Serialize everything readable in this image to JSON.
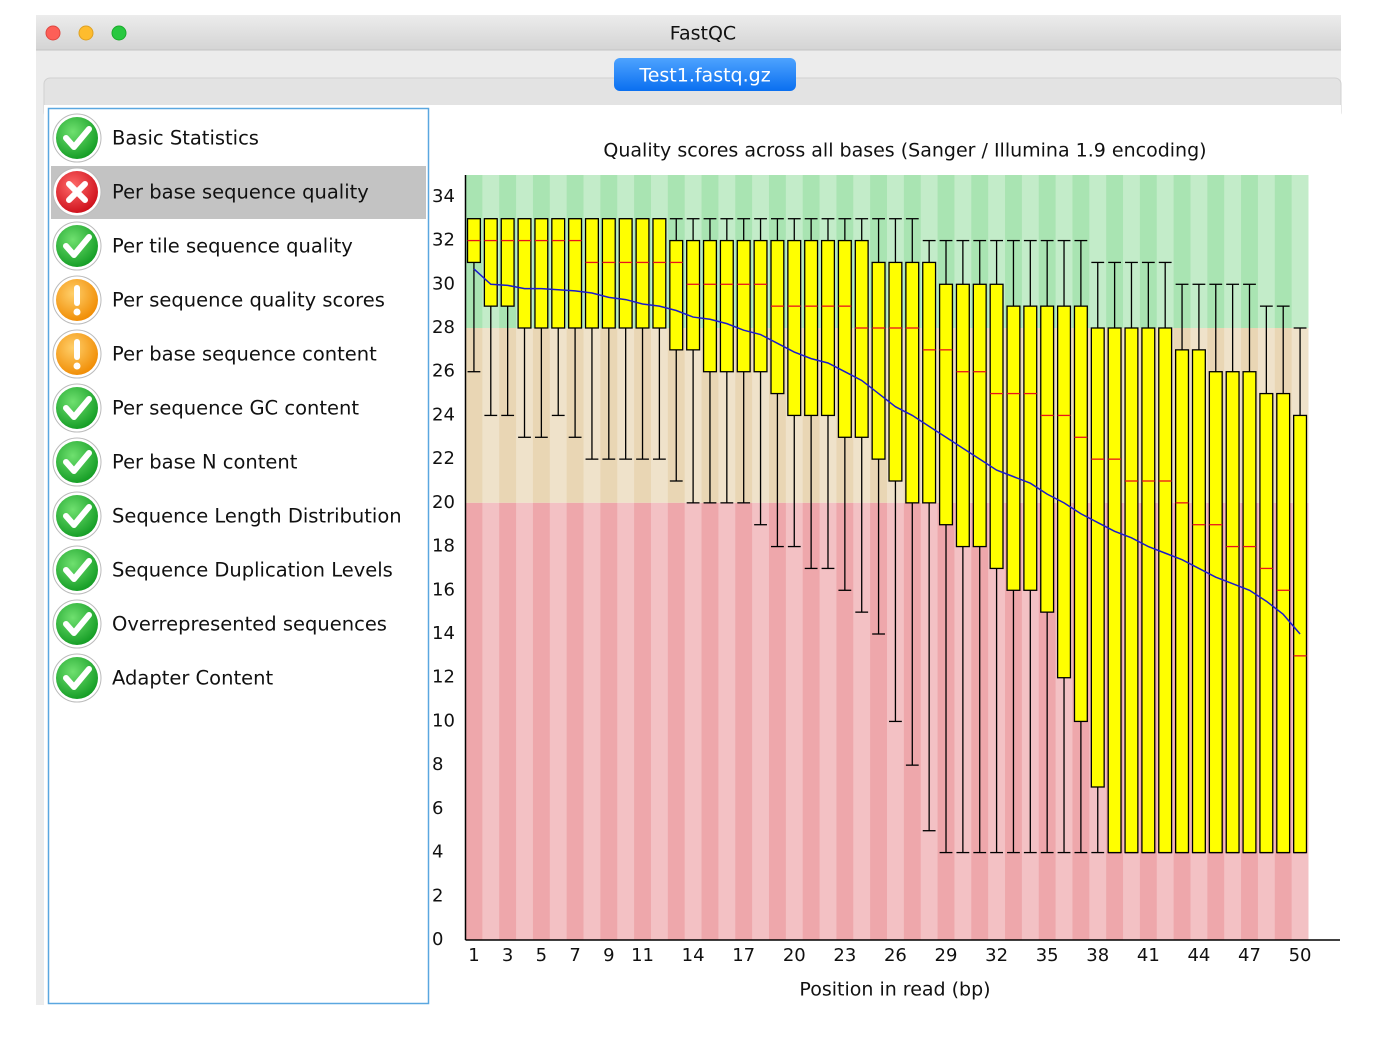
{
  "window": {
    "title": "FastQC",
    "tab": "Test1.fastq.gz"
  },
  "sidebar": {
    "selected": 1,
    "modules": [
      {
        "name": "Basic Statistics",
        "status": "pass"
      },
      {
        "name": "Per base sequence quality",
        "status": "fail"
      },
      {
        "name": "Per tile sequence quality",
        "status": "pass"
      },
      {
        "name": "Per sequence quality scores",
        "status": "warn"
      },
      {
        "name": "Per base sequence content",
        "status": "warn"
      },
      {
        "name": "Per sequence GC content",
        "status": "pass"
      },
      {
        "name": "Per base N content",
        "status": "pass"
      },
      {
        "name": "Sequence Length Distribution",
        "status": "pass"
      },
      {
        "name": "Sequence Duplication Levels",
        "status": "pass"
      },
      {
        "name": "Overrepresented sequences",
        "status": "pass"
      },
      {
        "name": "Adapter Content",
        "status": "pass"
      }
    ]
  },
  "chart_data": {
    "type": "box",
    "title": "Quality scores across all bases (Sanger / Illumina 1.9 encoding)",
    "x_label": "Position in read (bp)",
    "x": [
      1,
      2,
      3,
      4,
      5,
      6,
      7,
      8,
      9,
      10,
      11,
      12,
      13,
      14,
      15,
      16,
      17,
      18,
      19,
      20,
      21,
      22,
      23,
      24,
      25,
      26,
      27,
      28,
      29,
      30,
      31,
      32,
      33,
      34,
      35,
      36,
      37,
      38,
      39,
      40,
      41,
      42,
      43,
      44,
      45,
      46,
      47,
      48,
      49,
      50
    ],
    "whisker_high": [
      33,
      33,
      33,
      33,
      33,
      33,
      33,
      33,
      33,
      33,
      33,
      33,
      33,
      33,
      33,
      33,
      33,
      33,
      33,
      33,
      33,
      33,
      33,
      33,
      33,
      33,
      33,
      32,
      32,
      32,
      32,
      32,
      32,
      32,
      32,
      32,
      32,
      31,
      31,
      31,
      31,
      31,
      30,
      30,
      30,
      30,
      30,
      29,
      29,
      28
    ],
    "q3": [
      33,
      33,
      33,
      33,
      33,
      33,
      33,
      33,
      33,
      33,
      33,
      33,
      32,
      32,
      32,
      32,
      32,
      32,
      32,
      32,
      32,
      32,
      32,
      32,
      31,
      31,
      31,
      31,
      30,
      30,
      30,
      30,
      29,
      29,
      29,
      29,
      29,
      28,
      28,
      28,
      28,
      28,
      27,
      27,
      26,
      26,
      26,
      25,
      25,
      24
    ],
    "median": [
      32,
      32,
      32,
      32,
      32,
      32,
      32,
      31,
      31,
      31,
      31,
      31,
      31,
      30,
      30,
      30,
      30,
      30,
      29,
      29,
      29,
      29,
      29,
      28,
      28,
      28,
      28,
      27,
      27,
      26,
      26,
      25,
      25,
      25,
      24,
      24,
      23,
      22,
      22,
      21,
      21,
      21,
      20,
      19,
      19,
      18,
      18,
      17,
      16,
      13
    ],
    "q1": [
      31,
      29,
      29,
      28,
      28,
      28,
      28,
      28,
      28,
      28,
      28,
      28,
      27,
      27,
      26,
      26,
      26,
      26,
      25,
      24,
      24,
      24,
      23,
      23,
      22,
      21,
      20,
      20,
      19,
      18,
      18,
      17,
      16,
      16,
      15,
      12,
      10,
      7,
      4,
      4,
      4,
      4,
      4,
      4,
      4,
      4,
      4,
      4,
      4,
      4
    ],
    "whisker_low": [
      26,
      24,
      24,
      23,
      23,
      24,
      23,
      22,
      22,
      22,
      22,
      22,
      21,
      20,
      20,
      20,
      20,
      19,
      18,
      18,
      17,
      17,
      16,
      15,
      14,
      10,
      8,
      5,
      4,
      4,
      4,
      4,
      4,
      4,
      4,
      4,
      4,
      4,
      4,
      4,
      4,
      4,
      4,
      4,
      4,
      4,
      4,
      4,
      4,
      4
    ],
    "mean": [
      30.7,
      30.0,
      29.95,
      29.8,
      29.8,
      29.75,
      29.7,
      29.6,
      29.4,
      29.3,
      29.1,
      29.0,
      28.8,
      28.5,
      28.4,
      28.2,
      27.9,
      27.7,
      27.3,
      26.9,
      26.6,
      26.4,
      26.0,
      25.6,
      25.0,
      24.4,
      24.0,
      23.5,
      23.0,
      22.5,
      22.0,
      21.5,
      21.2,
      20.9,
      20.4,
      20.0,
      19.5,
      19.1,
      18.7,
      18.4,
      18.0,
      17.7,
      17.4,
      17.0,
      16.6,
      16.3,
      16.0,
      15.5,
      14.9,
      14.0
    ],
    "box_color": "#ffff00",
    "median_color": "#e8141c",
    "mean_color": "#1a1acc",
    "whisker_color": "#000000",
    "zones": [
      {
        "from": 28,
        "to": 35,
        "color": "#a9e4b2"
      },
      {
        "from": 20,
        "to": 28,
        "color": "#e9d6b4"
      },
      {
        "from": 0,
        "to": 20,
        "color": "#eea7ab"
      }
    ],
    "xlim": [
      0.5,
      50.5
    ],
    "xticks": [
      1,
      3,
      5,
      7,
      9,
      11,
      14,
      17,
      20,
      23,
      26,
      29,
      32,
      35,
      38,
      41,
      44,
      47,
      50
    ],
    "ylim": [
      0,
      35
    ],
    "yticks": [
      0,
      2,
      4,
      6,
      8,
      10,
      12,
      14,
      16,
      18,
      20,
      22,
      24,
      26,
      28,
      30,
      32,
      34
    ]
  }
}
